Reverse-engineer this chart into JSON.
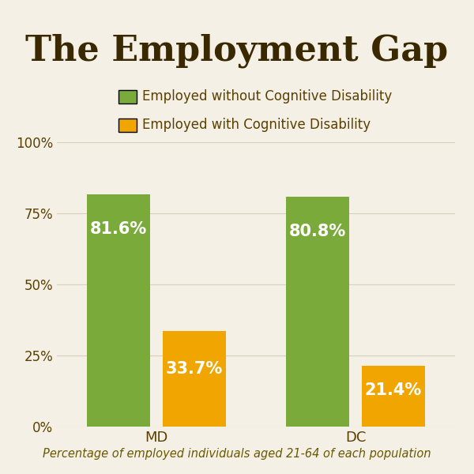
{
  "title": "The Employment Gap",
  "subtitle": "Percentage of employed individuals aged 21-64 of each population",
  "legend_labels": [
    "Employed without Cognitive Disability",
    "Employed with Cognitive Disability"
  ],
  "groups": [
    "MD",
    "DC"
  ],
  "values_without": [
    81.6,
    80.8
  ],
  "values_with": [
    33.7,
    21.4
  ],
  "color_without": "#7aaa3a",
  "color_with": "#f0a500",
  "background_color": "#f5f0e6",
  "title_color": "#3a2800",
  "legend_color": "#5a4000",
  "tick_label_color": "#5a4000",
  "subtitle_color": "#6a5800",
  "bar_label_color": "#ffffff",
  "grid_color": "#d8d0bc",
  "ylim": [
    0,
    100
  ],
  "yticks": [
    0,
    25,
    50,
    75,
    100
  ],
  "ytick_labels": [
    "0%",
    "25%",
    "50%",
    "75%",
    "100%"
  ],
  "title_fontsize": 32,
  "legend_fontsize": 12,
  "tick_fontsize": 12,
  "bar_label_fontsize": 15,
  "xtick_fontsize": 13,
  "subtitle_fontsize": 10.5,
  "bar_width": 0.32,
  "group_centers": [
    0.5,
    1.5
  ]
}
